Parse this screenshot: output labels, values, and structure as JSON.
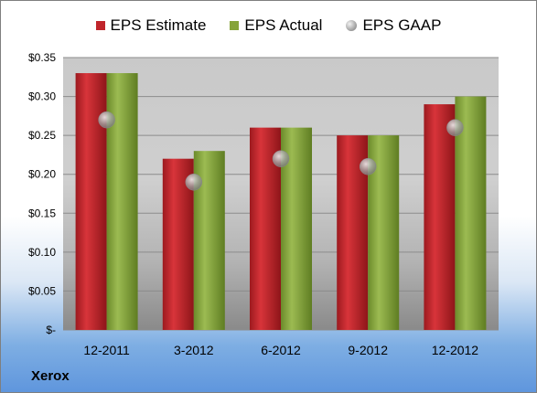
{
  "chart_data": {
    "type": "bar",
    "title": "",
    "company": "Xerox",
    "categories": [
      "12-2011",
      "3-2012",
      "6-2012",
      "9-2012",
      "12-2012"
    ],
    "series": [
      {
        "name": "EPS Estimate",
        "type": "bar",
        "color": "#c0252b",
        "values": [
          0.33,
          0.22,
          0.26,
          0.25,
          0.29
        ]
      },
      {
        "name": "EPS Actual",
        "type": "bar",
        "color": "#86a43a",
        "values": [
          0.33,
          0.23,
          0.26,
          0.25,
          0.3
        ]
      },
      {
        "name": "EPS GAAP",
        "type": "scatter",
        "color": "#a6a6a6",
        "values": [
          0.27,
          0.19,
          0.22,
          0.21,
          0.26
        ]
      }
    ],
    "y_ticks": [
      "$-",
      "$0.05",
      "$0.10",
      "$0.15",
      "$0.20",
      "$0.25",
      "$0.30",
      "$0.35"
    ],
    "ylim": [
      0,
      0.35
    ],
    "grid": true,
    "legend_position": "top"
  }
}
